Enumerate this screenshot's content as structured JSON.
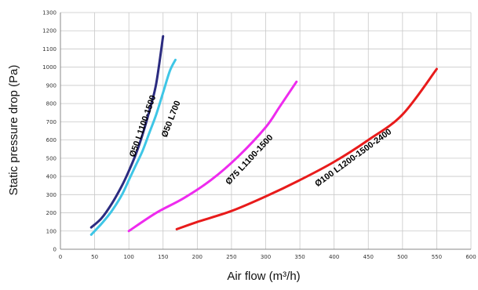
{
  "chart_data": {
    "type": "line",
    "xlabel": "Air flow (m³/h)",
    "ylabel": "Static pressure drop (Pa)",
    "xlim": [
      0,
      600
    ],
    "ylim": [
      0,
      1300
    ],
    "x_ticks": [
      0,
      50,
      100,
      150,
      200,
      250,
      300,
      350,
      400,
      450,
      500,
      550,
      600
    ],
    "y_ticks": [
      0,
      100,
      200,
      300,
      400,
      500,
      600,
      700,
      800,
      900,
      1000,
      1100,
      1200,
      1300
    ],
    "grid": true,
    "series": [
      {
        "name": "Ø50 L1100-1500",
        "color": "#2b2b80",
        "points": [
          [
            45,
            120
          ],
          [
            60,
            170
          ],
          [
            75,
            250
          ],
          [
            90,
            350
          ],
          [
            100,
            430
          ],
          [
            110,
            520
          ],
          [
            120,
            630
          ],
          [
            130,
            760
          ],
          [
            140,
            910
          ],
          [
            150,
            1170
          ]
        ]
      },
      {
        "name": "Ø50 L700",
        "color": "#3ec6e6",
        "points": [
          [
            45,
            80
          ],
          [
            60,
            140
          ],
          [
            75,
            210
          ],
          [
            90,
            300
          ],
          [
            100,
            380
          ],
          [
            110,
            460
          ],
          [
            120,
            540
          ],
          [
            130,
            640
          ],
          [
            140,
            740
          ],
          [
            150,
            860
          ],
          [
            160,
            980
          ],
          [
            168,
            1040
          ]
        ]
      },
      {
        "name": "Ø75 L1100-1500",
        "color": "#ee2bee",
        "points": [
          [
            100,
            100
          ],
          [
            140,
            200
          ],
          [
            180,
            280
          ],
          [
            220,
            380
          ],
          [
            260,
            510
          ],
          [
            300,
            670
          ],
          [
            320,
            780
          ],
          [
            345,
            920
          ]
        ]
      },
      {
        "name": "Ø100 L1200-1500-2400",
        "color": "#e81b1b",
        "points": [
          [
            170,
            110
          ],
          [
            200,
            150
          ],
          [
            250,
            210
          ],
          [
            300,
            290
          ],
          [
            350,
            380
          ],
          [
            400,
            480
          ],
          [
            450,
            600
          ],
          [
            500,
            740
          ],
          [
            550,
            990
          ]
        ]
      }
    ]
  }
}
